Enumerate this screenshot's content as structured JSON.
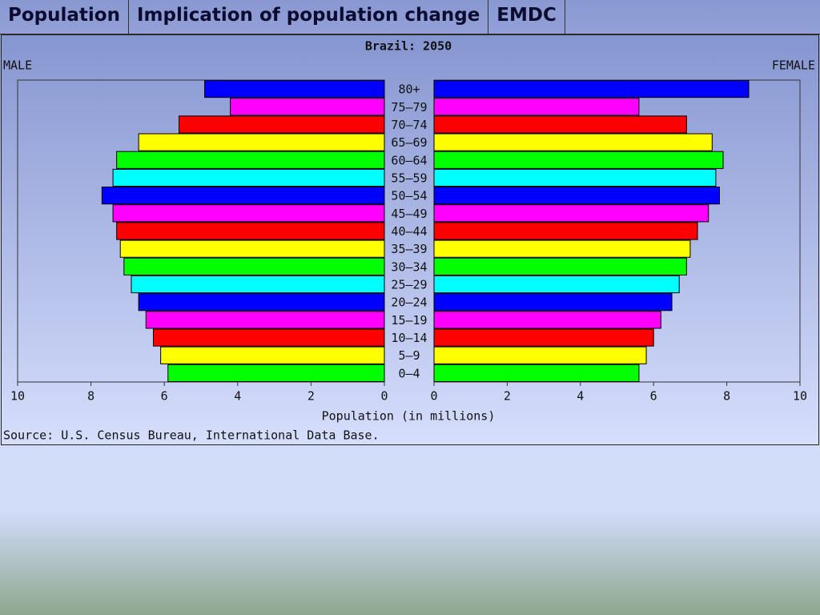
{
  "tabs": [
    "Population",
    "Implication of population change",
    "EMDC"
  ],
  "chart_data": {
    "type": "pyramid",
    "title": "Brazil: 2050",
    "categories": [
      "80+",
      "75–79",
      "70–74",
      "65–69",
      "60–64",
      "55–59",
      "50–54",
      "45–49",
      "40–44",
      "35–39",
      "30–34",
      "25–29",
      "20–24",
      "15–19",
      "10–14",
      "5–9",
      "0–4"
    ],
    "series": [
      {
        "name": "MALE",
        "values": [
          4.9,
          4.2,
          5.6,
          6.7,
          7.3,
          7.4,
          7.7,
          7.4,
          7.3,
          7.2,
          7.1,
          6.9,
          6.7,
          6.5,
          6.3,
          6.1,
          5.9
        ]
      },
      {
        "name": "FEMALE",
        "values": [
          8.6,
          5.6,
          6.9,
          7.6,
          7.9,
          7.7,
          7.8,
          7.5,
          7.2,
          7.0,
          6.9,
          6.7,
          6.5,
          6.2,
          6.0,
          5.8,
          5.6
        ]
      }
    ],
    "colors": [
      "#0000ff",
      "#ff00ff",
      "#ff0000",
      "#ffff00",
      "#00ff00",
      "#00ffff"
    ],
    "xlim": [
      0,
      10
    ],
    "xticks": [
      0,
      2,
      4,
      6,
      8,
      10
    ],
    "xlabel": "Population (in millions)",
    "source": "Source: U.S. Census Bureau, International Data Base."
  }
}
